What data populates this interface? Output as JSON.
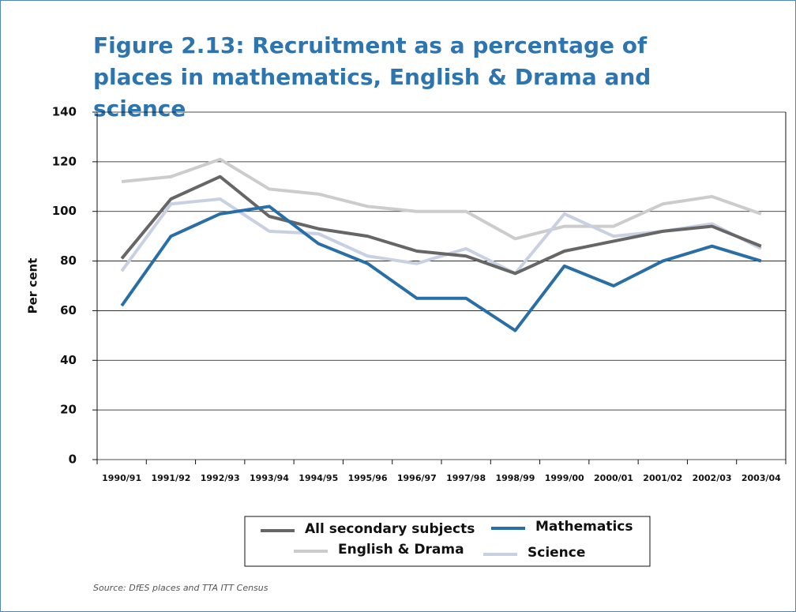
{
  "chart_data": {
    "type": "line",
    "title": "Figure 2.13: Recruitment as a percentage of places in mathematics, English & Drama and science",
    "y_label": "Per cent",
    "source": "Source: DfES places and TTA ITT Census",
    "categories": [
      "1990/91",
      "1991/92",
      "1992/93",
      "1993/94",
      "1994/95",
      "1995/96",
      "1996/97",
      "1997/98",
      "1998/99",
      "1999/00",
      "2000/01",
      "2001/02",
      "2002/03",
      "2003/04"
    ],
    "series": [
      {
        "name": "All secondary subjects",
        "color": "#666666",
        "values": [
          81,
          105,
          114,
          98,
          93,
          90,
          84,
          82,
          75,
          84,
          88,
          92,
          94,
          86
        ]
      },
      {
        "name": "Mathematics",
        "color": "#2a6ea6",
        "values": [
          62,
          90,
          99,
          102,
          87,
          79,
          65,
          65,
          52,
          78,
          70,
          80,
          86,
          80
        ]
      },
      {
        "name": "English & Drama",
        "color": "#cccccc",
        "values": [
          112,
          114,
          121,
          109,
          107,
          102,
          100,
          100,
          89,
          94,
          94,
          103,
          106,
          99
        ]
      },
      {
        "name": "Science",
        "color": "#c9d0e2",
        "values": [
          76,
          103,
          105,
          92,
          91,
          82,
          79,
          85,
          75,
          99,
          90,
          92,
          95,
          85
        ]
      }
    ],
    "ylim": [
      0,
      140
    ],
    "yticks": [
      0,
      20,
      40,
      60,
      80,
      100,
      120,
      140
    ],
    "grid": true
  }
}
